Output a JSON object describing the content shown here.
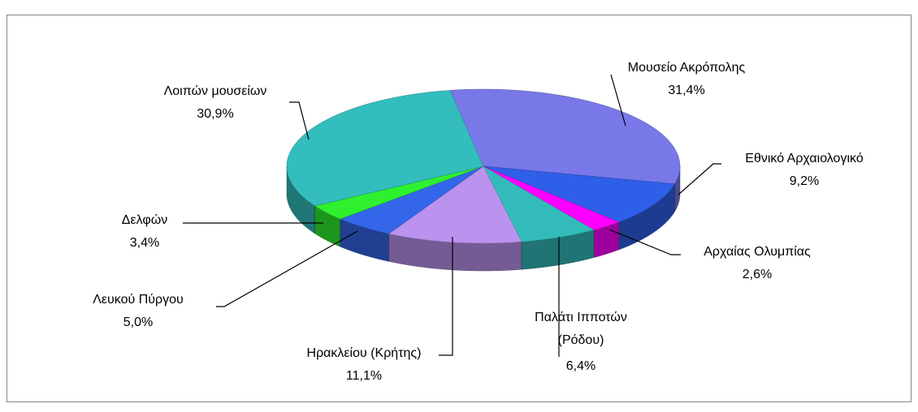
{
  "chart_data": {
    "type": "pie",
    "categories": [
      "Μουσείο Ακρόπολης",
      "Εθνικό Αρχαιολογικό",
      "Αρχαίας Ολυμπίας",
      "Παλάτι Ιπποτών (Ρόδου)",
      "Ηρακλείου (Κρήτης)",
      "Λευκού Πύργου",
      "Δελφών",
      "Λοιπών μουσείων"
    ],
    "values": [
      31.4,
      9.2,
      2.6,
      6.4,
      11.1,
      5.0,
      3.4,
      30.9
    ],
    "value_labels": [
      "31,4%",
      "9,2%",
      "2,6%",
      "6,4%",
      "11,1%",
      "5,0%",
      "3,4%",
      "30,9%"
    ],
    "colors": [
      "#7878e8",
      "#2f5fe8",
      "#ff00ff",
      "#33bbbb",
      "#bb93ee",
      "#3366e8",
      "#2ef02e",
      "#33bdbd"
    ]
  }
}
